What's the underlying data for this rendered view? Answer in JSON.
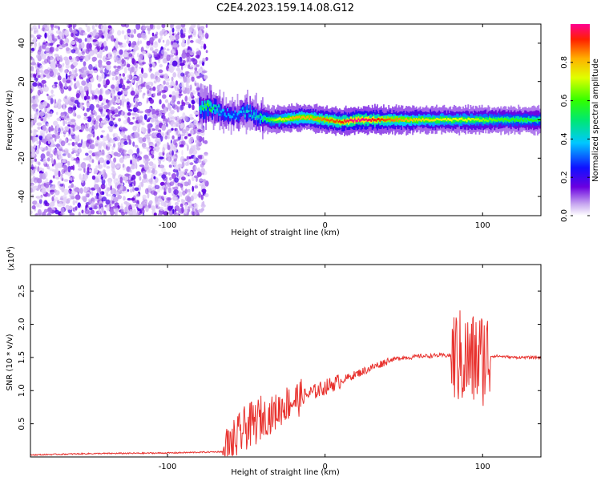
{
  "title": "C2E4.2023.159.14.08.G12",
  "chart_data": [
    {
      "type": "heatmap",
      "xlabel": "Height of straight line (km)",
      "ylabel": "Frequency (Hz)",
      "xlim": [
        -187,
        137
      ],
      "ylim": [
        -50,
        50
      ],
      "xticks": [
        -100,
        0,
        100
      ],
      "yticks": [
        -40,
        -20,
        0,
        20,
        40
      ],
      "colorbar": {
        "label": "Normalized spectral amplitude",
        "range": [
          0.0,
          1.0
        ],
        "ticks": [
          "0.0",
          "0.2",
          "0.4",
          "0.6",
          "0.8"
        ]
      },
      "noise_region": {
        "x": [
          -187,
          -75
        ],
        "y": [
          -50,
          50
        ]
      },
      "signal_track": {
        "x": [
          -80,
          -75,
          -70,
          -65,
          -60,
          -55,
          -50,
          -45,
          -40,
          -35,
          -30,
          -20,
          -10,
          0,
          10,
          20,
          40,
          60,
          80,
          90,
          100,
          110,
          137
        ],
        "freq": [
          6,
          7,
          6,
          4,
          2,
          3,
          5,
          2,
          1,
          0,
          0,
          1,
          1,
          0,
          -1,
          0,
          0,
          0,
          0,
          0,
          0,
          0,
          0
        ],
        "amplitude": [
          0.4,
          0.55,
          0.4,
          0.3,
          0.3,
          0.3,
          0.35,
          0.35,
          0.45,
          0.55,
          0.65,
          0.75,
          0.75,
          0.8,
          0.85,
          0.95,
          0.8,
          0.7,
          0.65,
          0.65,
          0.6,
          0.55,
          0.5
        ]
      }
    },
    {
      "type": "line",
      "xlabel": "Height of straight line (km)",
      "ylabel": "SNR (10 * v/v)",
      "scale_note": "(x10",
      "scale_exp": "4",
      "scale_close": ")",
      "xlim": [
        -187,
        137
      ],
      "ylim": [
        0,
        2.9
      ],
      "xticks": [
        -100,
        0,
        100
      ],
      "yticks": [
        0.5,
        1.0,
        1.5,
        2.0,
        2.5
      ],
      "series": [
        {
          "color": "#e8322e",
          "x": [
            -187,
            -150,
            -100,
            -80,
            -65,
            -60,
            -55,
            -50,
            -45,
            -40,
            -35,
            -30,
            -25,
            -20,
            -15,
            -10,
            -5,
            0,
            5,
            10,
            15,
            20,
            25,
            30,
            35,
            40,
            45,
            50,
            55,
            60,
            65,
            70,
            75,
            80,
            85,
            90,
            95,
            100,
            105,
            110,
            120,
            137
          ],
          "y": [
            0.03,
            0.05,
            0.06,
            0.07,
            0.08,
            0.15,
            0.3,
            0.45,
            0.5,
            0.6,
            0.62,
            0.7,
            0.8,
            0.85,
            0.9,
            0.95,
            1.0,
            1.05,
            1.1,
            1.15,
            1.2,
            1.25,
            1.3,
            1.35,
            1.4,
            1.45,
            1.48,
            1.5,
            1.5,
            1.52,
            1.52,
            1.53,
            1.53,
            1.53,
            1.5,
            1.45,
            1.45,
            1.5,
            1.52,
            1.52,
            1.5,
            1.5
          ]
        }
      ]
    }
  ]
}
